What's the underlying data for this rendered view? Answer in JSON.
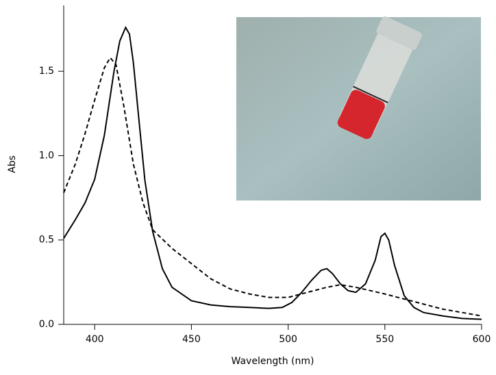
{
  "chart_data": {
    "type": "line",
    "xlabel": "Wavelength (nm)",
    "ylabel": "Abs",
    "xlim": [
      384,
      600
    ],
    "xticks": [
      400,
      450,
      500,
      550,
      600
    ],
    "ylim": [
      0,
      1.89
    ],
    "yticks": [
      {
        "value": 0,
        "label": "0.0"
      },
      {
        "value": 0.5,
        "label": "0.5"
      },
      {
        "value": 1,
        "label": "1.0"
      },
      {
        "value": 1.5,
        "label": "1.5"
      }
    ],
    "series": [
      {
        "color": "#000000",
        "style": "solid",
        "x": [
          384,
          390,
          395,
          400,
          405,
          410,
          413,
          416,
          418,
          420,
          423,
          426,
          430,
          435,
          440,
          450,
          460,
          470,
          480,
          490,
          497,
          502,
          507,
          512,
          517,
          520,
          523,
          527,
          531,
          535,
          540,
          545,
          548,
          550,
          552,
          555,
          560,
          565,
          570,
          580,
          590,
          600
        ],
        "values": [
          0.51,
          0.62,
          0.72,
          0.86,
          1.12,
          1.5,
          1.68,
          1.76,
          1.72,
          1.55,
          1.2,
          0.85,
          0.55,
          0.33,
          0.22,
          0.14,
          0.115,
          0.105,
          0.1,
          0.095,
          0.1,
          0.13,
          0.19,
          0.26,
          0.32,
          0.33,
          0.3,
          0.24,
          0.2,
          0.19,
          0.24,
          0.38,
          0.52,
          0.54,
          0.5,
          0.35,
          0.17,
          0.1,
          0.07,
          0.05,
          0.035,
          0.03
        ]
      },
      {
        "color": "#000000",
        "style": "dashed",
        "x": [
          384,
          390,
          395,
          400,
          405,
          408,
          411,
          415,
          420,
          425,
          430,
          440,
          450,
          460,
          470,
          480,
          490,
          500,
          510,
          520,
          527,
          535,
          550,
          560,
          570,
          580,
          590,
          600
        ],
        "values": [
          0.78,
          0.95,
          1.13,
          1.33,
          1.52,
          1.58,
          1.54,
          1.3,
          0.95,
          0.72,
          0.56,
          0.45,
          0.36,
          0.27,
          0.21,
          0.18,
          0.16,
          0.16,
          0.19,
          0.22,
          0.235,
          0.22,
          0.18,
          0.15,
          0.12,
          0.09,
          0.07,
          0.05
        ]
      }
    ]
  }
}
